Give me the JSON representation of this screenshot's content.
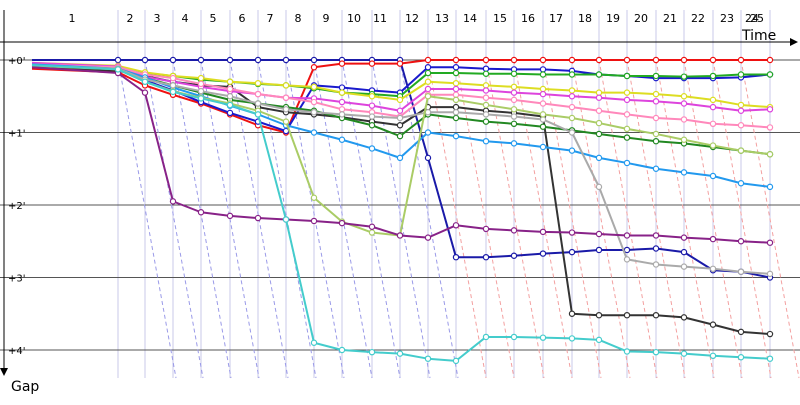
{
  "chart_data": {
    "type": "line",
    "x_title": "Time",
    "y_title": "Gap",
    "laps": [
      "1",
      "2",
      "3",
      "4",
      "5",
      "6",
      "7",
      "8",
      "9",
      "10",
      "11",
      "12",
      "13",
      "14",
      "15",
      "16",
      "17",
      "18",
      "19",
      "20",
      "21",
      "22",
      "23",
      "24",
      "25"
    ],
    "gap_ticks": [
      "+0'",
      "+1'",
      "+2'",
      "+3'",
      "+4'"
    ],
    "ylim_minutes": [
      0,
      4
    ],
    "grid": true,
    "series": [
      {
        "color": "#1a1aa8",
        "values": [
          0,
          0,
          0,
          0,
          0,
          0,
          0,
          0,
          0,
          0,
          0,
          0,
          1.35,
          2.72,
          2.72,
          2.7,
          2.67,
          2.65,
          2.62,
          2.62,
          2.6,
          2.65,
          2.9,
          2.92,
          3.0
        ]
      },
      {
        "color": "#ee1111",
        "values": [
          0.12,
          0.17,
          0.35,
          0.48,
          0.6,
          0.75,
          0.9,
          1.0,
          0.1,
          0.05,
          0.05,
          0.05,
          0,
          0,
          0,
          0,
          0,
          0,
          0,
          0,
          0,
          0,
          0,
          0,
          0
        ]
      },
      {
        "color": "#1a1acc",
        "values": [
          0.07,
          0.12,
          0.28,
          0.42,
          0.58,
          0.73,
          0.85,
          0.98,
          0.35,
          0.38,
          0.42,
          0.45,
          0.1,
          0.1,
          0.12,
          0.13,
          0.13,
          0.15,
          0.2,
          0.22,
          0.25,
          0.25,
          0.25,
          0.24,
          0.2
        ]
      },
      {
        "color": "#22aa22",
        "values": [
          0.05,
          0.1,
          0.18,
          0.22,
          0.27,
          0.3,
          0.33,
          0.35,
          0.39,
          0.45,
          0.47,
          0.5,
          0.18,
          0.18,
          0.19,
          0.19,
          0.2,
          0.2,
          0.2,
          0.22,
          0.22,
          0.23,
          0.22,
          0.2,
          0.2
        ]
      },
      {
        "color": "#333333",
        "values": [
          0.1,
          0.15,
          0.22,
          0.3,
          0.35,
          0.37,
          0.65,
          0.72,
          0.75,
          0.79,
          0.85,
          0.9,
          0.65,
          0.65,
          0.7,
          0.73,
          0.78,
          3.5,
          3.52,
          3.52,
          3.52,
          3.55,
          3.65,
          3.75,
          3.78
        ]
      },
      {
        "color": "#dddd22",
        "values": [
          0.04,
          0.08,
          0.17,
          0.22,
          0.25,
          0.3,
          0.32,
          0.35,
          0.37,
          0.45,
          0.5,
          0.55,
          0.3,
          0.32,
          0.35,
          0.37,
          0.4,
          0.42,
          0.45,
          0.45,
          0.47,
          0.5,
          0.55,
          0.62,
          0.65
        ]
      },
      {
        "color": "#dd44dd",
        "values": [
          0.04,
          0.09,
          0.23,
          0.3,
          0.37,
          0.43,
          0.47,
          0.52,
          0.53,
          0.58,
          0.63,
          0.7,
          0.4,
          0.4,
          0.42,
          0.45,
          0.47,
          0.5,
          0.52,
          0.55,
          0.57,
          0.6,
          0.65,
          0.7,
          0.68
        ]
      },
      {
        "color": "#ff88bb",
        "values": [
          0.06,
          0.1,
          0.2,
          0.25,
          0.33,
          0.4,
          0.47,
          0.52,
          0.58,
          0.68,
          0.72,
          0.78,
          0.48,
          0.48,
          0.52,
          0.55,
          0.6,
          0.65,
          0.7,
          0.75,
          0.8,
          0.82,
          0.88,
          0.9,
          0.93
        ]
      },
      {
        "color": "#228822",
        "values": [
          0.08,
          0.12,
          0.25,
          0.35,
          0.45,
          0.55,
          0.6,
          0.65,
          0.7,
          0.8,
          0.9,
          1.05,
          0.75,
          0.8,
          0.85,
          0.88,
          0.92,
          0.97,
          1.02,
          1.07,
          1.12,
          1.15,
          1.2,
          1.25,
          1.3
        ]
      },
      {
        "color": "#2299ee",
        "values": [
          0.06,
          0.12,
          0.24,
          0.38,
          0.5,
          0.63,
          0.75,
          0.9,
          1.0,
          1.1,
          1.22,
          1.35,
          1.0,
          1.05,
          1.12,
          1.15,
          1.2,
          1.25,
          1.35,
          1.42,
          1.5,
          1.55,
          1.6,
          1.7,
          1.75
        ]
      },
      {
        "color": "#aaaaaa",
        "values": [
          0.08,
          0.12,
          0.27,
          0.35,
          0.43,
          0.5,
          0.6,
          0.68,
          0.72,
          0.75,
          0.78,
          0.8,
          0.72,
          0.72,
          0.75,
          0.78,
          0.82,
          1.0,
          1.75,
          2.75,
          2.82,
          2.85,
          2.88,
          2.92,
          2.95
        ]
      },
      {
        "color": "#aacc66",
        "values": [
          0.08,
          0.13,
          0.3,
          0.43,
          0.52,
          0.6,
          0.7,
          0.85,
          1.9,
          2.23,
          2.38,
          2.42,
          0.5,
          0.55,
          0.62,
          0.68,
          0.75,
          0.8,
          0.87,
          0.95,
          1.02,
          1.1,
          1.18,
          1.25,
          1.3
        ]
      },
      {
        "color": "#882288",
        "values": [
          0.1,
          0.18,
          0.45,
          1.95,
          2.1,
          2.15,
          2.18,
          2.2,
          2.22,
          2.25,
          2.3,
          2.42,
          2.45,
          2.28,
          2.33,
          2.35,
          2.37,
          2.38,
          2.4,
          2.42,
          2.42,
          2.45,
          2.47,
          2.5,
          2.52
        ]
      },
      {
        "color": "#44cccc",
        "values": [
          0.07,
          0.13,
          0.3,
          0.44,
          0.53,
          0.62,
          0.75,
          2.2,
          3.9,
          4.0,
          4.03,
          4.05,
          4.12,
          4.15,
          3.82,
          3.82,
          3.83,
          3.84,
          3.86,
          4.02,
          4.03,
          4.05,
          4.08,
          4.1,
          4.12
        ]
      }
    ]
  }
}
